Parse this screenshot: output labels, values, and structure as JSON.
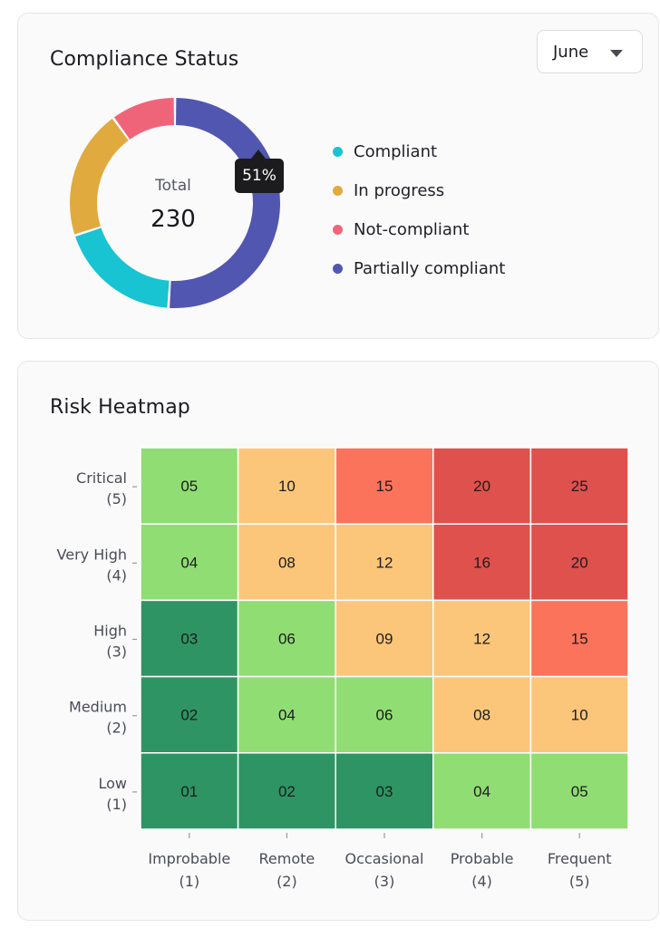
{
  "compliance": {
    "title": "Compliance Status",
    "dropdown": {
      "value": "June"
    },
    "total_label": "Total",
    "total_value": "230",
    "tooltip": "51%",
    "legend": [
      {
        "label": "Compliant",
        "color": "#18c3d2"
      },
      {
        "label": "In progress",
        "color": "#e0aa3e"
      },
      {
        "label": "Not-compliant",
        "color": "#f0647a"
      },
      {
        "label": "Partially compliant",
        "color": "#5156b0"
      }
    ]
  },
  "risk": {
    "title": "Risk Heatmap"
  },
  "chart_data": [
    {
      "type": "pie",
      "style": "donut",
      "slices": [
        {
          "label": "Partially compliant",
          "percent": 51,
          "color": "#5156b0"
        },
        {
          "label": "Compliant",
          "percent": 19,
          "color": "#18c3d2"
        },
        {
          "label": "In progress",
          "percent": 20,
          "color": "#e0aa3e"
        },
        {
          "label": "Not-compliant",
          "percent": 10,
          "color": "#f0647a"
        }
      ],
      "center_label": "Total",
      "center_value": 230
    },
    {
      "type": "heatmap",
      "title": "Risk Heatmap",
      "x_labels": [
        [
          "Improbable",
          "(1)"
        ],
        [
          "Remote",
          "(2)"
        ],
        [
          "Occasional",
          "(3)"
        ],
        [
          "Probable",
          "(4)"
        ],
        [
          "Frequent",
          "(5)"
        ]
      ],
      "y_labels": [
        [
          "Critical",
          "(5)"
        ],
        [
          "Very High",
          "(4)"
        ],
        [
          "High",
          "(3)"
        ],
        [
          "Medium",
          "(2)"
        ],
        [
          "Low",
          "(1)"
        ]
      ],
      "values": [
        [
          "05",
          "10",
          "15",
          "20",
          "25"
        ],
        [
          "04",
          "08",
          "12",
          "16",
          "20"
        ],
        [
          "03",
          "06",
          "09",
          "12",
          "15"
        ],
        [
          "02",
          "04",
          "06",
          "08",
          "10"
        ],
        [
          "01",
          "02",
          "03",
          "04",
          "05"
        ]
      ],
      "color_scale": [
        {
          "max": 3,
          "color": "#2e9463"
        },
        {
          "max": 6,
          "color": "#90dd73"
        },
        {
          "max": 12,
          "color": "#fbc67a"
        },
        {
          "max": 15,
          "color": "#fc735b"
        },
        {
          "max": 25,
          "color": "#df514c"
        }
      ]
    }
  ]
}
